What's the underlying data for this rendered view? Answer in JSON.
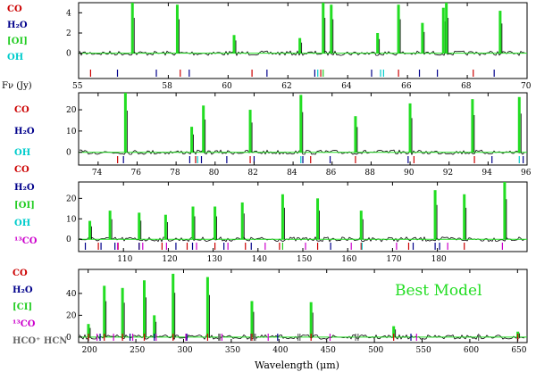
{
  "colors": {
    "model": "#22dd22",
    "data": "#000000",
    "CO": "#cc0000",
    "H2O": "#00008b",
    "OI": "#22cc22",
    "OH": "#00cccc",
    "13CO": "#cc00cc",
    "axis": "#000000",
    "misc": "#666666"
  },
  "figure": {
    "ylabel": "Fν (Jy)",
    "xlabel": "Wavelength (μm)",
    "annotation": "Best Model"
  },
  "chart_data": [
    {
      "type": "line",
      "panel": "55-70 micron",
      "xlim": [
        55,
        70
      ],
      "ylim": [
        -2.5,
        5
      ],
      "xticks": [
        55,
        58,
        60,
        62,
        64,
        66,
        68,
        70
      ],
      "xtick_labels": [
        "55",
        "58",
        "60",
        "62",
        "64",
        "66",
        "68",
        "70"
      ],
      "ytick_labels": [
        [
          "4",
          4
        ],
        [
          "2",
          2
        ],
        [
          "0",
          0
        ]
      ],
      "species": [
        "CO",
        "H2O",
        "[OI]",
        "OH"
      ],
      "lines": {
        "CO": [
          55.4,
          58.4,
          60.8,
          63.1,
          65.7,
          68.2
        ],
        "H2O": [
          56.3,
          57.6,
          58.7,
          61.3,
          62.9,
          64.8,
          66.4,
          67.0,
          68.9
        ],
        "OH": [
          63.0,
          65.1,
          65.2
        ],
        "OI": [
          63.18
        ]
      },
      "peaks": [
        {
          "x": 56.8,
          "y": 5.0
        },
        {
          "x": 58.3,
          "y": 4.8
        },
        {
          "x": 60.2,
          "y": 1.8
        },
        {
          "x": 62.4,
          "y": 1.5
        },
        {
          "x": 63.18,
          "y": 5.0
        },
        {
          "x": 63.45,
          "y": 4.8
        },
        {
          "x": 65.0,
          "y": 2.0
        },
        {
          "x": 65.7,
          "y": 4.8
        },
        {
          "x": 66.5,
          "y": 3.0
        },
        {
          "x": 67.2,
          "y": 4.5
        },
        {
          "x": 67.3,
          "y": 5.0
        },
        {
          "x": 69.1,
          "y": 4.2
        }
      ]
    },
    {
      "type": "line",
      "panel": "73-96 micron",
      "xlim": [
        73,
        96
      ],
      "ylim": [
        -6,
        28
      ],
      "xticks": [
        74,
        76,
        78,
        80,
        82,
        84,
        86,
        88,
        90,
        92,
        94,
        96
      ],
      "xtick_labels": [
        "74",
        "76",
        "78",
        "80",
        "82",
        "84",
        "86",
        "88",
        "90",
        "92",
        "94",
        "96"
      ],
      "ytick_labels": [
        [
          "20",
          20
        ],
        [
          "10",
          10
        ],
        [
          "0",
          0
        ]
      ],
      "species": [
        "CO",
        "H2O",
        "OH"
      ],
      "lines": {
        "CO": [
          75.0,
          79.0,
          81.8,
          84.9,
          87.2,
          90.2,
          93.3
        ],
        "H2O": [
          75.3,
          78.7,
          79.3,
          80.6,
          82.0,
          84.5,
          85.9,
          89.9,
          94.2,
          95.8
        ],
        "OH": [
          79.1,
          84.4,
          95.6
        ]
      },
      "peaks": [
        {
          "x": 75.4,
          "y": 28.0
        },
        {
          "x": 78.8,
          "y": 12.0
        },
        {
          "x": 79.4,
          "y": 22.0
        },
        {
          "x": 81.8,
          "y": 20.0
        },
        {
          "x": 84.4,
          "y": 27.0
        },
        {
          "x": 87.2,
          "y": 17.0
        },
        {
          "x": 90.0,
          "y": 23.0
        },
        {
          "x": 93.2,
          "y": 25.0
        },
        {
          "x": 95.6,
          "y": 26.0
        }
      ]
    },
    {
      "type": "line",
      "panel": "100-200 micron",
      "xlim": [
        100,
        200
      ],
      "ylim": [
        -6,
        28
      ],
      "xticks": [
        110,
        120,
        130,
        140,
        150,
        160,
        170,
        180
      ],
      "xtick_labels": [
        "110",
        "120",
        "130",
        "140",
        "150",
        "160",
        "170",
        "180"
      ],
      "ytick_labels": [
        [
          "20",
          20
        ],
        [
          "10",
          10
        ],
        [
          "0",
          0
        ]
      ],
      "species": [
        "CO",
        "H2O",
        "[OI]",
        "OH",
        "13CO"
      ],
      "lines": {
        "CO": [
          104.4,
          108.8,
          113.5,
          118.6,
          124.2,
          130.4,
          137.2,
          144.8,
          153.3,
          163.0,
          173.6,
          186.0
        ],
        "H2O": [
          101.5,
          105.0,
          108.1,
          113.5,
          121.7,
          125.4,
          132.4,
          138.5,
          156.2,
          174.6,
          179.5,
          180.5
        ],
        "OH": [
          163.2
        ],
        "OI": [
          145.5
        ],
        "13CO": [
          108.7,
          114.3,
          119.6,
          126.3,
          133.3,
          141.6,
          150.6,
          160.8,
          170.9,
          182.3,
          194.5
        ]
      },
      "peaks": [
        {
          "x": 102.5,
          "y": 9.0
        },
        {
          "x": 107.0,
          "y": 14.0
        },
        {
          "x": 113.5,
          "y": 13.0
        },
        {
          "x": 119.4,
          "y": 12.0
        },
        {
          "x": 125.5,
          "y": 16.0
        },
        {
          "x": 130.4,
          "y": 16.0
        },
        {
          "x": 136.5,
          "y": 18.0
        },
        {
          "x": 145.5,
          "y": 22.0
        },
        {
          "x": 153.3,
          "y": 20.0
        },
        {
          "x": 163.0,
          "y": 14.0
        },
        {
          "x": 179.5,
          "y": 24.0
        },
        {
          "x": 186.0,
          "y": 22.0
        },
        {
          "x": 195.0,
          "y": 28.0
        }
      ]
    },
    {
      "type": "line",
      "panel": "200-650 micron",
      "xlim": [
        190,
        660
      ],
      "ylim": [
        -5,
        62
      ],
      "xticks": [
        200,
        250,
        300,
        350,
        400,
        450,
        500,
        550,
        600,
        650
      ],
      "xtick_labels": [
        "200",
        "250",
        "300",
        "350",
        "400",
        "450",
        "500",
        "550",
        "600",
        "650"
      ],
      "ytick_labels": [
        [
          "40",
          40
        ],
        [
          "20",
          20
        ],
        [
          "0",
          0
        ]
      ],
      "species": [
        "CO",
        "H2O",
        "[CI]",
        "13CO",
        "HCO+",
        "HCN"
      ],
      "lines": {
        "CO": [
          200.3,
          216.9,
          236.0,
          258.8,
          289.0,
          325.2,
          371.6,
          433.6,
          520.2,
          650.3
        ],
        "H2O": [
          212.5,
          243.9,
          269.3,
          303.4,
          398.6,
          538.3
        ],
        "CI": [
          370.4,
          609.1
        ],
        "13CO": [
          209.3,
          226.6,
          246.7,
          271.3,
          302.4,
          340.2,
          388.7,
          453.5,
          544.2
        ],
        "HCO+": [
          336.8,
          373.9,
          420.0,
          480.3
        ],
        "HCN": [
          338.1,
          375.3,
          422.0,
          482.9
        ]
      },
      "peaks": [
        {
          "x": 200.3,
          "y": 12.0
        },
        {
          "x": 216.9,
          "y": 47.0
        },
        {
          "x": 236.0,
          "y": 45.0
        },
        {
          "x": 258.8,
          "y": 52.0
        },
        {
          "x": 269.3,
          "y": 20.0
        },
        {
          "x": 289.0,
          "y": 58.0
        },
        {
          "x": 325.2,
          "y": 55.0
        },
        {
          "x": 371.6,
          "y": 33.0
        },
        {
          "x": 433.6,
          "y": 32.0
        },
        {
          "x": 520.2,
          "y": 10.0
        },
        {
          "x": 650.3,
          "y": 5.0
        }
      ]
    }
  ],
  "panels": [
    {
      "labels": [
        {
          "text": "CO",
          "color": "CO"
        },
        {
          "text": "H₂O",
          "color": "H2O"
        },
        {
          "text": "[OI]",
          "color": "OI"
        },
        {
          "text": "OH",
          "color": "OH"
        }
      ]
    },
    {
      "labels": [
        {
          "text": "CO",
          "color": "CO"
        },
        {
          "text": "H₂O",
          "color": "H2O"
        },
        {
          "text": "OH",
          "color": "OH"
        }
      ]
    },
    {
      "labels": [
        {
          "text": "CO",
          "color": "CO"
        },
        {
          "text": "H₂O",
          "color": "H2O"
        },
        {
          "text": "[OI]",
          "color": "OI"
        },
        {
          "text": "OH",
          "color": "OH"
        },
        {
          "text": "¹³CO",
          "color": "13CO"
        }
      ]
    },
    {
      "labels": [
        {
          "text": "CO",
          "color": "CO"
        },
        {
          "text": "H₂O",
          "color": "H2O"
        },
        {
          "text": "[CI]",
          "color": "OI"
        },
        {
          "text": "¹³CO",
          "color": "13CO"
        },
        {
          "text": "HCO⁺ HCN",
          "color": "misc"
        }
      ]
    }
  ]
}
